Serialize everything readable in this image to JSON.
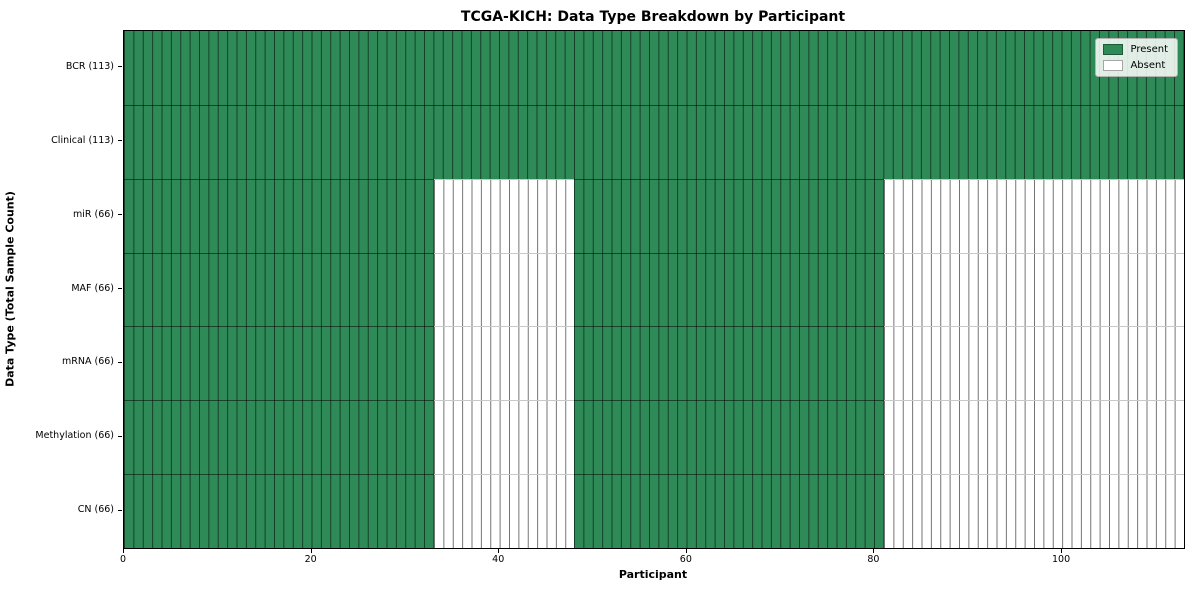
{
  "chart_data": {
    "type": "heatmap",
    "title": "TCGA-KICH: Data Type Breakdown by Participant",
    "xlabel": "Participant",
    "ylabel": "Data Type (Total Sample Count)",
    "x_range": [
      0,
      113
    ],
    "x_ticks": [
      0,
      20,
      40,
      60,
      80,
      100
    ],
    "n_participants": 113,
    "legend_position": "upper right",
    "legend": {
      "items": [
        {
          "label": "Present",
          "color": "#2e8b57"
        },
        {
          "label": "Absent",
          "color": "#ffffff"
        }
      ]
    },
    "colors": {
      "present": "#2e8b57",
      "absent": "#ffffff",
      "cell_border": "rgba(0,0,0,0.55)"
    },
    "rows": [
      {
        "label": "BCR (113)",
        "data_type": "BCR",
        "total_sample_count": 113,
        "segments": [
          {
            "state": "present",
            "start": 0,
            "end": 113
          }
        ]
      },
      {
        "label": "Clinical (113)",
        "data_type": "Clinical",
        "total_sample_count": 113,
        "segments": [
          {
            "state": "present",
            "start": 0,
            "end": 113
          }
        ]
      },
      {
        "label": "miR (66)",
        "data_type": "miR",
        "total_sample_count": 66,
        "segments": [
          {
            "state": "present",
            "start": 0,
            "end": 33
          },
          {
            "state": "absent",
            "start": 33,
            "end": 48
          },
          {
            "state": "present",
            "start": 48,
            "end": 81
          },
          {
            "state": "absent",
            "start": 81,
            "end": 113
          }
        ]
      },
      {
        "label": "MAF (66)",
        "data_type": "MAF",
        "total_sample_count": 66,
        "segments": [
          {
            "state": "present",
            "start": 0,
            "end": 33
          },
          {
            "state": "absent",
            "start": 33,
            "end": 48
          },
          {
            "state": "present",
            "start": 48,
            "end": 81
          },
          {
            "state": "absent",
            "start": 81,
            "end": 113
          }
        ]
      },
      {
        "label": "mRNA (66)",
        "data_type": "mRNA",
        "total_sample_count": 66,
        "segments": [
          {
            "state": "present",
            "start": 0,
            "end": 33
          },
          {
            "state": "absent",
            "start": 33,
            "end": 48
          },
          {
            "state": "present",
            "start": 48,
            "end": 81
          },
          {
            "state": "absent",
            "start": 81,
            "end": 113
          }
        ]
      },
      {
        "label": "Methylation (66)",
        "data_type": "Methylation",
        "total_sample_count": 66,
        "segments": [
          {
            "state": "present",
            "start": 0,
            "end": 33
          },
          {
            "state": "absent",
            "start": 33,
            "end": 48
          },
          {
            "state": "present",
            "start": 48,
            "end": 81
          },
          {
            "state": "absent",
            "start": 81,
            "end": 113
          }
        ]
      },
      {
        "label": "CN (66)",
        "data_type": "CN",
        "total_sample_count": 66,
        "segments": [
          {
            "state": "present",
            "start": 0,
            "end": 33
          },
          {
            "state": "absent",
            "start": 33,
            "end": 48
          },
          {
            "state": "present",
            "start": 48,
            "end": 81
          },
          {
            "state": "absent",
            "start": 81,
            "end": 113
          }
        ]
      }
    ]
  }
}
